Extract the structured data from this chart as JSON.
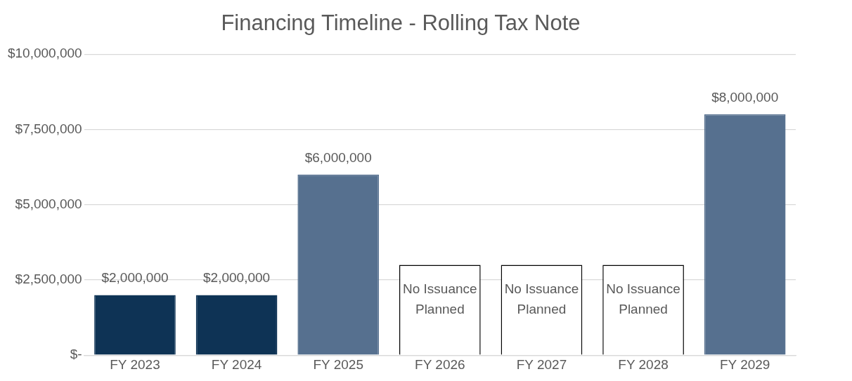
{
  "chart_data": {
    "type": "bar",
    "title": "Financing Timeline - Rolling Tax Note",
    "categories": [
      "FY 2023",
      "FY 2024",
      "FY 2025",
      "FY 2026",
      "FY 2027",
      "FY 2028",
      "FY 2029"
    ],
    "values": [
      2000000,
      2000000,
      6000000,
      3000000,
      3000000,
      3000000,
      8000000
    ],
    "colors": [
      "#0e3355",
      "#0e3355",
      "#56708f",
      "#ffffff",
      "#ffffff",
      "#ffffff",
      "#56708f"
    ],
    "value_labels": [
      "$2,000,000",
      "$2,000,000",
      "$6,000,000",
      "No Issuance Planned",
      "No Issuance Planned",
      "No Issuance Planned",
      "$8,000,000"
    ],
    "ylim": [
      0,
      10000000
    ],
    "yticks": [
      {
        "value": 0,
        "label": "$-"
      },
      {
        "value": 2500000,
        "label": "$2,500,000"
      },
      {
        "value": 5000000,
        "label": "$5,000,000"
      },
      {
        "value": 7500000,
        "label": "$7,500,000"
      },
      {
        "value": 10000000,
        "label": "$10,000,000"
      }
    ],
    "grid": "y",
    "legend": false
  }
}
